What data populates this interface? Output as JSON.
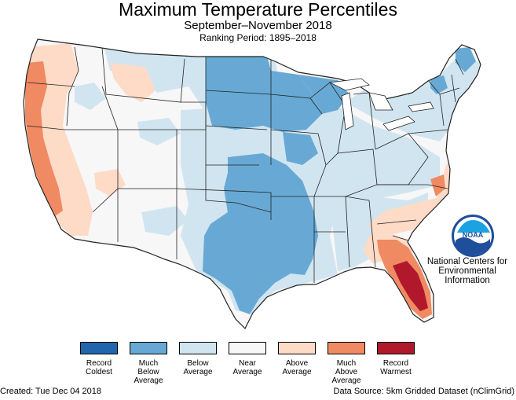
{
  "header": {
    "title": "Maximum Temperature Percentiles",
    "subtitle": "September–November 2018",
    "ranking_period": "Ranking Period: 1895–2018"
  },
  "logo": {
    "text": "NOAA",
    "org_lines": [
      "National Centers for",
      "Environmental",
      "Information"
    ]
  },
  "legend": [
    {
      "label": "Record\nColdest",
      "color": "#2166ac"
    },
    {
      "label": "Much\nBelow\nAverage",
      "color": "#67a9d4"
    },
    {
      "label": "Below\nAverage",
      "color": "#d1e5f0"
    },
    {
      "label": "Near\nAverage",
      "color": "#f7f7f7"
    },
    {
      "label": "Above\nAverage",
      "color": "#fddbc7"
    },
    {
      "label": "Much\nAbove\nAverage",
      "color": "#ef8a62"
    },
    {
      "label": "Record\nWarmest",
      "color": "#b2182b"
    }
  ],
  "footer": {
    "created": "Created: Tue Dec 04 2018",
    "source": "Data Source: 5km Gridded Dataset (nClimGrid)"
  }
}
